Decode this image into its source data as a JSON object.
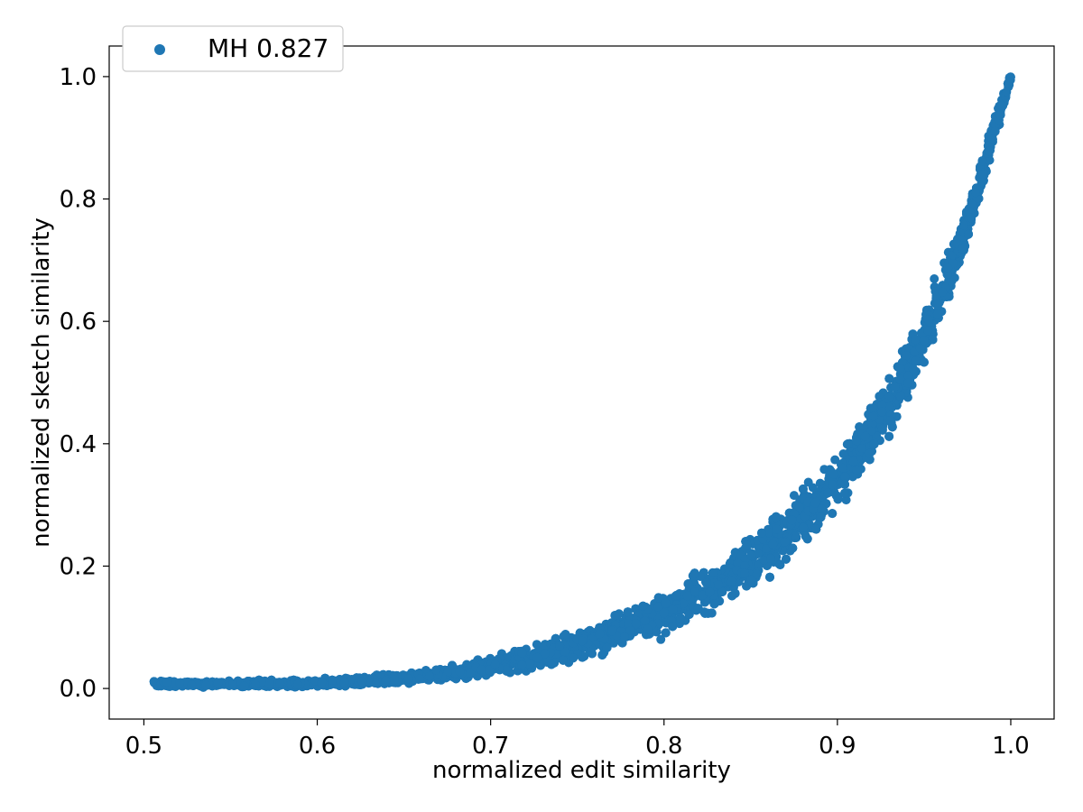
{
  "chart_data": {
    "type": "scatter",
    "xlabel": "normalized edit similarity",
    "ylabel": "normalized sketch similarity",
    "xlim": [
      0.48,
      1.025
    ],
    "ylim": [
      -0.05,
      1.05
    ],
    "xticks": [
      "0.5",
      "0.6",
      "0.7",
      "0.8",
      "0.9",
      "1.0"
    ],
    "yticks": [
      "0.0",
      "0.2",
      "0.4",
      "0.6",
      "0.8",
      "1.0"
    ],
    "grid": false,
    "legend_position": "top-left",
    "series": [
      {
        "name": "MH 0.827",
        "color": "#1f77b4",
        "marker": "circle",
        "x": [
          0.505,
          0.51,
          0.52,
          0.53,
          0.54,
          0.55,
          0.56,
          0.57,
          0.58,
          0.59,
          0.6,
          0.61,
          0.62,
          0.63,
          0.64,
          0.65,
          0.66,
          0.67,
          0.68,
          0.69,
          0.7,
          0.71,
          0.72,
          0.73,
          0.74,
          0.75,
          0.76,
          0.77,
          0.78,
          0.79,
          0.8,
          0.81,
          0.82,
          0.83,
          0.84,
          0.85,
          0.86,
          0.87,
          0.88,
          0.89,
          0.9,
          0.91,
          0.92,
          0.93,
          0.94,
          0.95,
          0.96,
          0.965,
          0.97,
          0.975,
          0.98,
          0.985,
          0.99,
          0.995,
          1.0
        ],
        "y": [
          0.008,
          0.008,
          0.007,
          0.007,
          0.007,
          0.007,
          0.007,
          0.008,
          0.008,
          0.008,
          0.009,
          0.01,
          0.011,
          0.013,
          0.015,
          0.017,
          0.02,
          0.023,
          0.027,
          0.031,
          0.036,
          0.042,
          0.048,
          0.055,
          0.063,
          0.071,
          0.08,
          0.09,
          0.1,
          0.112,
          0.125,
          0.139,
          0.154,
          0.17,
          0.188,
          0.208,
          0.23,
          0.254,
          0.281,
          0.311,
          0.344,
          0.381,
          0.422,
          0.468,
          0.52,
          0.578,
          0.643,
          0.679,
          0.718,
          0.76,
          0.806,
          0.855,
          0.909,
          0.953,
          1.0
        ],
        "spread": [
          0.006,
          0.006,
          0.006,
          0.006,
          0.006,
          0.006,
          0.006,
          0.006,
          0.006,
          0.007,
          0.007,
          0.007,
          0.008,
          0.008,
          0.009,
          0.009,
          0.01,
          0.011,
          0.012,
          0.014,
          0.016,
          0.018,
          0.02,
          0.022,
          0.024,
          0.026,
          0.028,
          0.03,
          0.032,
          0.034,
          0.036,
          0.038,
          0.04,
          0.042,
          0.044,
          0.046,
          0.048,
          0.05,
          0.052,
          0.054,
          0.056,
          0.058,
          0.058,
          0.058,
          0.056,
          0.054,
          0.05,
          0.046,
          0.042,
          0.038,
          0.034,
          0.03,
          0.026,
          0.018,
          0.004
        ]
      }
    ]
  }
}
